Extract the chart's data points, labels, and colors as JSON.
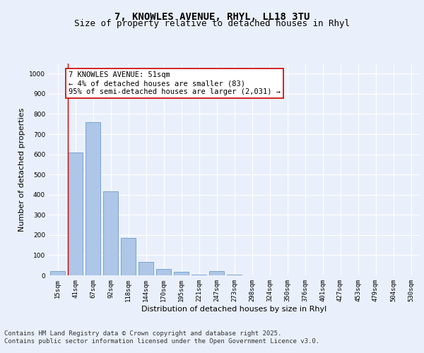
{
  "title_line1": "7, KNOWLES AVENUE, RHYL, LL18 3TU",
  "title_line2": "Size of property relative to detached houses in Rhyl",
  "xlabel": "Distribution of detached houses by size in Rhyl",
  "ylabel": "Number of detached properties",
  "categories": [
    "15sqm",
    "41sqm",
    "67sqm",
    "92sqm",
    "118sqm",
    "144sqm",
    "170sqm",
    "195sqm",
    "221sqm",
    "247sqm",
    "273sqm",
    "298sqm",
    "324sqm",
    "350sqm",
    "376sqm",
    "401sqm",
    "427sqm",
    "453sqm",
    "479sqm",
    "504sqm",
    "530sqm"
  ],
  "values": [
    20,
    610,
    760,
    415,
    185,
    65,
    30,
    18,
    5,
    22,
    5,
    0,
    0,
    0,
    0,
    0,
    0,
    0,
    0,
    0,
    0
  ],
  "bar_color": "#aec6e8",
  "bar_edge_color": "#5a8fc2",
  "annotation_text": "7 KNOWLES AVENUE: 51sqm\n← 4% of detached houses are smaller (83)\n95% of semi-detached houses are larger (2,031) →",
  "annotation_box_color": "#ffffff",
  "annotation_box_edge": "#cc0000",
  "line_color": "#cc0000",
  "ylim": [
    0,
    1050
  ],
  "yticks": [
    0,
    100,
    200,
    300,
    400,
    500,
    600,
    700,
    800,
    900,
    1000
  ],
  "background_color": "#eaf0fb",
  "grid_color": "#ffffff",
  "footer_text": "Contains HM Land Registry data © Crown copyright and database right 2025.\nContains public sector information licensed under the Open Government Licence v3.0.",
  "title_fontsize": 10,
  "subtitle_fontsize": 9,
  "axis_label_fontsize": 8,
  "tick_fontsize": 6.5,
  "annotation_fontsize": 7.5,
  "footer_fontsize": 6.5
}
